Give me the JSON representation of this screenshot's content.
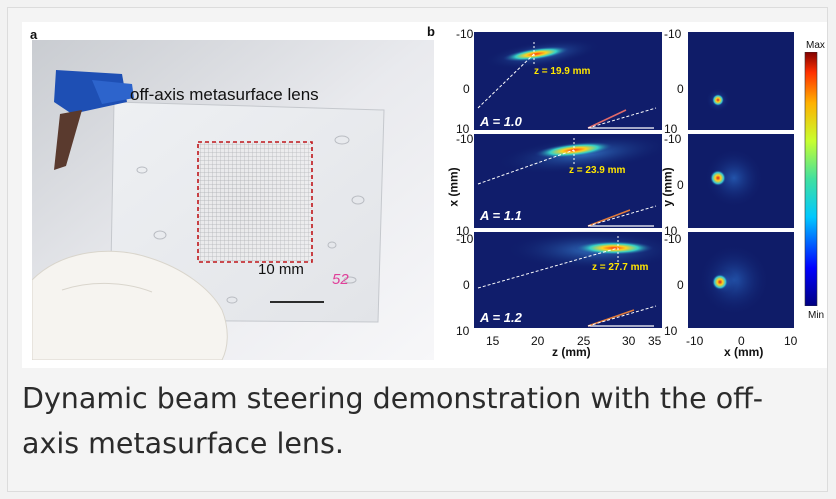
{
  "figure": {
    "panel_a": {
      "letter": "a",
      "lens_label": "off-axis metasurface lens",
      "scale_bar_label": "10 mm",
      "handwritten_mark": "52"
    },
    "panel_b": {
      "letter": "b",
      "rows": [
        {
          "A_label": "A = 1.0",
          "z_label": "z = 19.9 mm"
        },
        {
          "A_label": "A = 1.1",
          "z_label": "z = 23.9 mm"
        },
        {
          "A_label": "A = 1.2",
          "z_label": "z = 27.7 mm"
        }
      ],
      "left_axis": {
        "ylabel": "x (mm)",
        "xlabel": "z (mm)",
        "y_ticks": [
          "-10",
          "0",
          "10"
        ],
        "x_ticks": [
          "15",
          "20",
          "25",
          "30",
          "35"
        ]
      },
      "right_axis": {
        "ylabel": "y (mm)",
        "xlabel": "x (mm)",
        "y_ticks": [
          "-10",
          "0",
          "10"
        ],
        "x_ticks": [
          "-10",
          "0",
          "10"
        ]
      },
      "colorbar": {
        "max_label": "Max",
        "min_label": "Min"
      }
    }
  },
  "caption": "Dynamic beam steering demonstration with the off-axis metasurface lens."
}
